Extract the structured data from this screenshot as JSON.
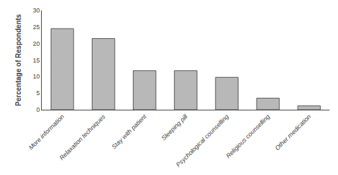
{
  "chart_data": {
    "type": "bar",
    "categories": [
      "More information",
      "Relaxation techniques",
      "Stay with patient",
      "Sleeping pill",
      "Psychological counselling",
      "Religious counselling",
      "Other medication"
    ],
    "values": [
      24.5,
      21.5,
      11.8,
      11.8,
      9.8,
      3.5,
      1.2
    ],
    "color": "#b8b8b8",
    "ylabel": "Percentage of Respondents",
    "ylim": [
      0,
      30
    ],
    "yticks": [
      0,
      5,
      10,
      15,
      20,
      25,
      30
    ],
    "grid": false
  }
}
